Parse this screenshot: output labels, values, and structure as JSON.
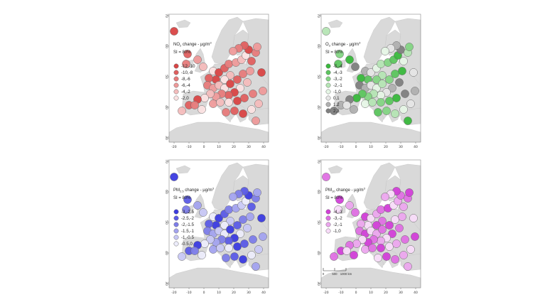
{
  "panels": [
    {
      "id": "no2",
      "title_html_parts": [
        "NO",
        "2",
        " change - µg/m",
        "3"
      ],
      "si": "SI = 80%",
      "legend": [
        {
          "label": "-12,-10",
          "fill": "#d94545"
        },
        {
          "label": "-10,-8",
          "fill": "#e05f5f"
        },
        {
          "label": "-8,-6",
          "fill": "#e77b7b"
        },
        {
          "label": "-6,-4",
          "fill": "#ee9a9a"
        },
        {
          "label": "-4,-2",
          "fill": "#f4bcbc"
        },
        {
          "label": "-2,0",
          "fill": "#fbe2e2"
        }
      ],
      "x_ticks": [
        "-20",
        "-10",
        "0",
        "10",
        "20",
        "30",
        "40"
      ],
      "y_ticks": [
        "70",
        "60",
        "50",
        "40",
        "30"
      ]
    },
    {
      "id": "o3",
      "title_html_parts": [
        "O",
        "3",
        " change - µg/m",
        "3"
      ],
      "si": "SI = 80%",
      "legend": [
        {
          "label": "-5,-4",
          "fill": "#39b83c"
        },
        {
          "label": "-4,-3",
          "fill": "#5cc55e"
        },
        {
          "label": "-3,-2",
          "fill": "#84d584"
        },
        {
          "label": "-2,-1",
          "fill": "#b5e5b4"
        },
        {
          "label": "-1,0",
          "fill": "#e6f6e6"
        },
        {
          "label": "0,1",
          "fill": "#e6e6e6"
        },
        {
          "label": "1,2",
          "fill": "#b0b0b0"
        },
        {
          "label": "2,3",
          "fill": "#7f7f7f"
        }
      ],
      "x_ticks": [
        "-20",
        "-10",
        "0",
        "10",
        "20",
        "30",
        "40"
      ],
      "y_ticks": [
        "70",
        "60",
        "50",
        "40",
        "30"
      ]
    },
    {
      "id": "pm25",
      "title_html_parts": [
        "PM",
        "2.5",
        " change - µg/m",
        "3"
      ],
      "si": "SI = 80%",
      "legend": [
        {
          "label": "-3,-2.5",
          "fill": "#3b3be0"
        },
        {
          "label": "-2.5,-2",
          "fill": "#5b5be6"
        },
        {
          "label": "-2,-1.5",
          "fill": "#7d7de9"
        },
        {
          "label": "-1.5,-1",
          "fill": "#a3a3ef"
        },
        {
          "label": "-1,-0.5",
          "fill": "#c8c8f5"
        },
        {
          "label": "-0.5,0",
          "fill": "#ececfb"
        }
      ],
      "x_ticks": [
        "-20",
        "-10",
        "0",
        "10",
        "20",
        "30",
        "40"
      ],
      "y_ticks": [
        "70",
        "60",
        "50",
        "40",
        "30"
      ]
    },
    {
      "id": "pm10",
      "title_html_parts": [
        "PM",
        "10",
        " change - µg/m",
        "3"
      ],
      "si": "SI = 80%",
      "legend": [
        {
          "label": "-4,-3",
          "fill": "#d23fd8"
        },
        {
          "label": "-3,-2",
          "fill": "#df70e3"
        },
        {
          "label": "-2,-1",
          "fill": "#eca6ee"
        },
        {
          "label": "-1,0",
          "fill": "#f8dcf9"
        }
      ],
      "x_ticks": [
        "-20",
        "-10",
        "0",
        "10",
        "20",
        "30",
        "40"
      ],
      "y_ticks": [
        "70",
        "60",
        "50",
        "40",
        "30"
      ],
      "scale_bar": {
        "labels": [
          "0",
          "500",
          "1000 km"
        ]
      }
    }
  ]
}
